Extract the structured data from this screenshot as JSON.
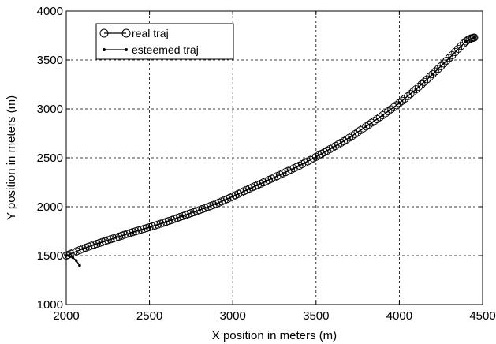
{
  "chart_data": {
    "type": "line",
    "title": "",
    "xlabel": "X position in meters (m)",
    "ylabel": "Y position in meters (m)",
    "xlim": [
      2000,
      4500
    ],
    "ylim": [
      1000,
      4000
    ],
    "xticks": [
      2000,
      2500,
      3000,
      3500,
      4000,
      4500
    ],
    "yticks": [
      1000,
      1500,
      2000,
      2500,
      3000,
      3500,
      4000
    ],
    "xtick_labels": [
      "2000",
      "2500",
      "3000",
      "3500",
      "4000",
      "4500"
    ],
    "ytick_labels": [
      "1000",
      "1500",
      "2000",
      "2500",
      "3000",
      "3500",
      "4000"
    ],
    "grid": true,
    "legend_position": "top-left",
    "series": [
      {
        "name": "real traj",
        "marker": "circle",
        "color": "#000000",
        "x": [
          2000,
          2100,
          2200,
          2300,
          2400,
          2500,
          2600,
          2700,
          2800,
          2900,
          3000,
          3100,
          3200,
          3300,
          3400,
          3500,
          3600,
          3700,
          3800,
          3900,
          4000,
          4100,
          4200,
          4300,
          4400,
          4450
        ],
        "y": [
          1500,
          1570,
          1630,
          1685,
          1740,
          1790,
          1845,
          1905,
          1965,
          2030,
          2105,
          2185,
          2260,
          2340,
          2420,
          2510,
          2605,
          2705,
          2820,
          2935,
          3060,
          3200,
          3355,
          3520,
          3690,
          3730
        ]
      },
      {
        "name": "esteemed traj",
        "marker": "dot",
        "color": "#000000",
        "x": [
          2080,
          2060,
          2040,
          2000,
          2100,
          2200,
          2300,
          2400,
          2500,
          2600,
          2700,
          2800,
          2900,
          3000,
          3100,
          3200,
          3300,
          3400,
          3500,
          3600,
          3700,
          3800,
          3900,
          4000,
          4100,
          4200,
          4300,
          4400,
          4450
        ],
        "y": [
          1400,
          1450,
          1480,
          1500,
          1570,
          1630,
          1685,
          1740,
          1790,
          1845,
          1905,
          1965,
          2030,
          2105,
          2185,
          2260,
          2340,
          2420,
          2510,
          2605,
          2705,
          2820,
          2935,
          3060,
          3200,
          3355,
          3520,
          3690,
          3730
        ]
      }
    ]
  }
}
